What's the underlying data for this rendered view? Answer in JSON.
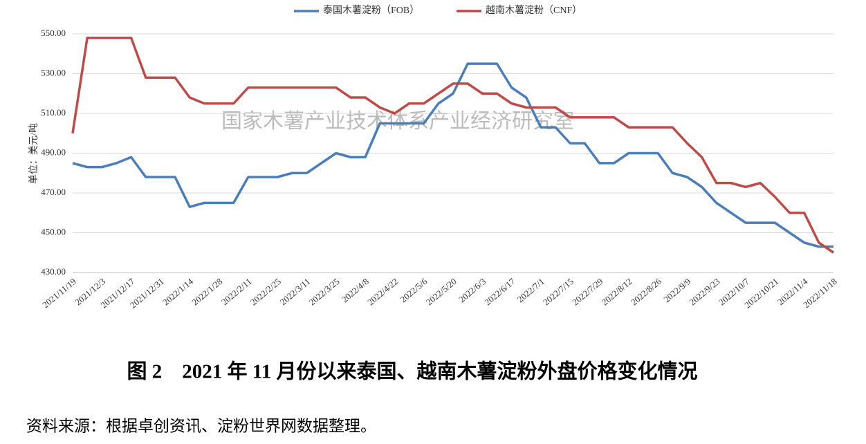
{
  "chart_data": {
    "type": "line",
    "caption": "图 2　2021 年 11 月份以来泰国、越南木薯淀粉外盘价格变化情况",
    "source": "资料来源：根据卓创资讯、淀粉世界网数据整理。",
    "watermark": "国家木薯产业技术体系产业经济研究室",
    "ylabel": "单位：美元/吨",
    "categories": [
      "2021/11/19",
      null,
      "2021/12/3",
      null,
      "2021/12/17",
      null,
      "2021/12/31",
      null,
      "2022/1/14",
      null,
      "2022/1/28",
      null,
      "2022/2/11",
      null,
      "2022/2/25",
      null,
      "2022/3/11",
      null,
      "2022/3/25",
      null,
      "2022/4/8",
      null,
      "2022/4/22",
      null,
      "2022/5/6",
      null,
      "2022/5/20",
      null,
      "2022/6/3",
      null,
      "2022/6/17",
      null,
      "2022/7/1",
      null,
      "2022/7/15",
      null,
      "2022/7/29",
      null,
      "2022/8/12",
      null,
      "2022/8/26",
      null,
      "2022/9/9",
      null,
      "2022/9/23",
      null,
      "2022/10/7",
      null,
      "2022/10/21",
      null,
      "2022/11/4",
      null,
      "2022/11/18"
    ],
    "series": [
      {
        "name": "泰国木薯淀粉（FOB）",
        "color": "#4a7ebb",
        "values": [
          485,
          483,
          483,
          485,
          488,
          478,
          478,
          478,
          463,
          465,
          465,
          465,
          478,
          478,
          478,
          480,
          480,
          485,
          490,
          488,
          488,
          505,
          505,
          505,
          505,
          515,
          520,
          535,
          535,
          535,
          523,
          518,
          503,
          503,
          495,
          495,
          485,
          485,
          490,
          490,
          490,
          480,
          478,
          473,
          465,
          460,
          455,
          455,
          455,
          450,
          445,
          443,
          443
        ]
      },
      {
        "name": "越南木薯淀粉（CNF）",
        "color": "#be4b48",
        "values": [
          500,
          548,
          548,
          548,
          548,
          528,
          528,
          528,
          518,
          515,
          515,
          515,
          523,
          523,
          523,
          523,
          523,
          523,
          523,
          518,
          518,
          513,
          510,
          515,
          515,
          520,
          525,
          525,
          520,
          520,
          515,
          513,
          513,
          513,
          508,
          508,
          508,
          508,
          503,
          503,
          503,
          503,
          495,
          488,
          475,
          475,
          473,
          475,
          468,
          460,
          460,
          445,
          440
        ]
      }
    ],
    "ylim": [
      430,
      550
    ],
    "yticks": [
      {
        "value": 430,
        "label": "430.00"
      },
      {
        "value": 450,
        "label": "450.00"
      },
      {
        "value": 470,
        "label": "470.00"
      },
      {
        "value": 490,
        "label": "490.00"
      },
      {
        "value": 510,
        "label": "510.00"
      },
      {
        "value": 530,
        "label": "530.00"
      },
      {
        "value": 550,
        "label": "550.00"
      }
    ],
    "grid": true
  }
}
